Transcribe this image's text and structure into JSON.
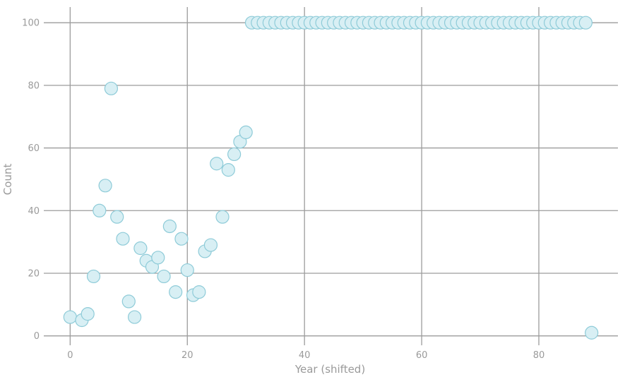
{
  "chart_data": {
    "type": "scatter",
    "title": "",
    "xlabel": "Year (shifted)",
    "ylabel": "Count",
    "xlim": [
      -4.5,
      93.5
    ],
    "ylim": [
      -3,
      105
    ],
    "xticks": [
      0,
      20,
      40,
      60,
      80
    ],
    "yticks": [
      0,
      20,
      40,
      60,
      80,
      100
    ],
    "grid": true,
    "legend": "none",
    "colors": {
      "point_fill": "#d8eff4",
      "point_stroke": "#8ecbd8",
      "grid": "#9c9c9c",
      "text": "#9a9a9a"
    },
    "series": [
      {
        "x": [
          0,
          2,
          3,
          4,
          5,
          6,
          7,
          8,
          9,
          10,
          11,
          12,
          13,
          14,
          15,
          16,
          17,
          18,
          19,
          20,
          21,
          22,
          23,
          24,
          25,
          26,
          27,
          28,
          29,
          30,
          31,
          32,
          33,
          34,
          35,
          36,
          37,
          38,
          39,
          40,
          41,
          42,
          43,
          44,
          45,
          46,
          47,
          48,
          49,
          50,
          51,
          52,
          53,
          54,
          55,
          56,
          57,
          58,
          59,
          60,
          61,
          62,
          63,
          64,
          65,
          66,
          67,
          68,
          69,
          70,
          71,
          72,
          73,
          74,
          75,
          76,
          77,
          78,
          79,
          80,
          81,
          82,
          83,
          84,
          85,
          86,
          87,
          88,
          89
        ],
        "y": [
          6,
          5,
          7,
          19,
          40,
          48,
          79,
          38,
          31,
          11,
          6,
          28,
          24,
          22,
          25,
          19,
          35,
          14,
          31,
          21,
          13,
          14,
          27,
          29,
          55,
          38,
          53,
          58,
          62,
          65,
          100,
          100,
          100,
          100,
          100,
          100,
          100,
          100,
          100,
          100,
          100,
          100,
          100,
          100,
          100,
          100,
          100,
          100,
          100,
          100,
          100,
          100,
          100,
          100,
          100,
          100,
          100,
          100,
          100,
          100,
          100,
          100,
          100,
          100,
          100,
          100,
          100,
          100,
          100,
          100,
          100,
          100,
          100,
          100,
          100,
          100,
          100,
          100,
          100,
          100,
          100,
          100,
          100,
          100,
          100,
          100,
          100,
          100,
          1
        ]
      }
    ]
  }
}
